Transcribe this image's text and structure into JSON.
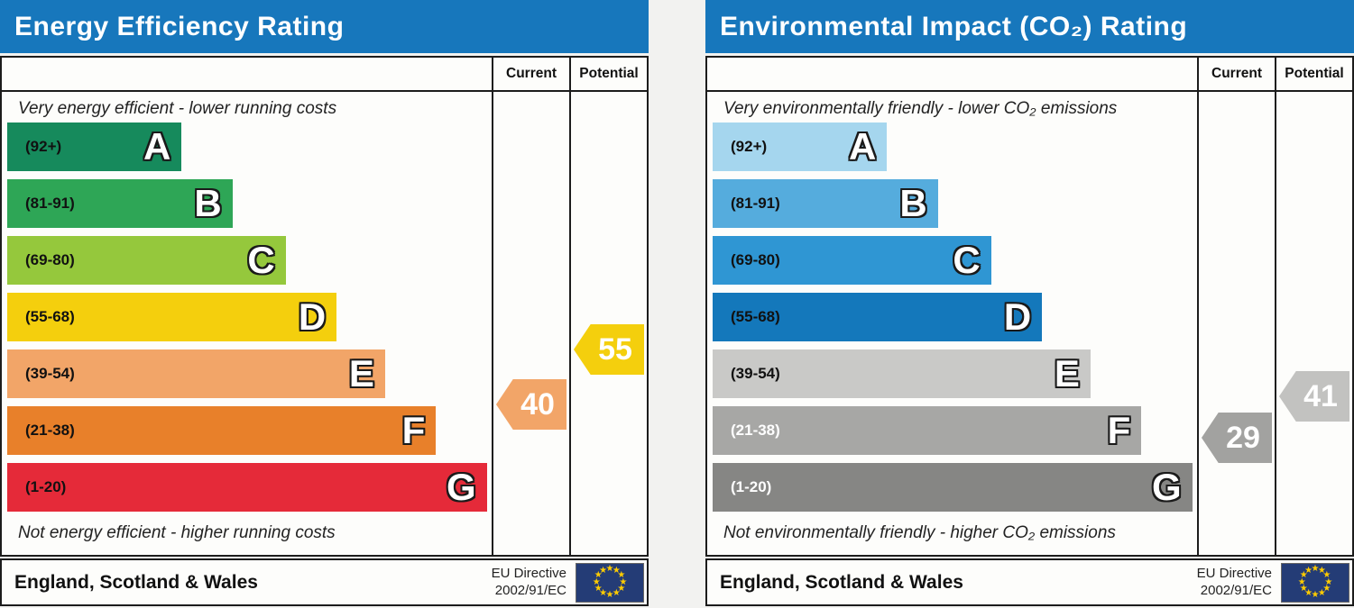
{
  "chart_data": [
    {
      "type": "bar",
      "title": "Energy Efficiency Rating",
      "top_label": "Very energy efficient - lower running costs",
      "bottom_label": "Not energy efficient - higher running costs",
      "categories": [
        "A (92+)",
        "B (81-91)",
        "C (69-80)",
        "D (55-68)",
        "E (39-54)",
        "F (21-38)",
        "G (1-20)"
      ],
      "band_widths_pct": [
        36,
        46.5,
        57.5,
        68,
        78,
        88.5,
        99
      ],
      "band_colors": [
        "#168a5c",
        "#2ea656",
        "#95c83c",
        "#f4cf0d",
        "#f2a568",
        "#e8802a",
        "#e52a39"
      ],
      "current": 40,
      "current_band": "E",
      "potential": 55,
      "potential_band": "D",
      "legend_position": "right columns (Current / Potential)",
      "region": "England, Scotland & Wales",
      "directive": "EU Directive 2002/91/EC"
    },
    {
      "type": "bar",
      "title": "Environmental Impact (CO₂) Rating",
      "top_label": "Very environmentally friendly - lower CO₂ emissions",
      "bottom_label": "Not environmentally friendly - higher CO₂ emissions",
      "categories": [
        "A (92+)",
        "B (81-91)",
        "C (69-80)",
        "D (55-68)",
        "E (39-54)",
        "F (21-38)",
        "G (1-20)"
      ],
      "band_widths_pct": [
        36,
        46.5,
        57.5,
        68,
        78,
        88.5,
        99
      ],
      "band_colors": [
        "#a5d6ee",
        "#55acdd",
        "#2f96d3",
        "#1478bb",
        "#c9c9c7",
        "#a7a7a5",
        "#868684"
      ],
      "current": 29,
      "current_band": "F",
      "potential": 41,
      "potential_band": "E",
      "legend_position": "right columns (Current / Potential)",
      "region": "England, Scotland & Wales",
      "directive": "EU Directive 2002/91/EC"
    }
  ],
  "colors": {
    "header_bg": "#1777bc",
    "flag_bg": "#243c76",
    "flag_star": "#ffcc00"
  },
  "charts": [
    {
      "title": "Energy Efficiency Rating",
      "col_current": "Current",
      "col_potential": "Potential",
      "top_label": "Very energy efficient - lower running costs",
      "bottom_label": "Not energy efficient - higher running costs",
      "bands": [
        {
          "letter": "A",
          "range": "(92+)",
          "color": "#168a5c",
          "width_pct": 36,
          "label_color": "#111111"
        },
        {
          "letter": "B",
          "range": "(81-91)",
          "color": "#2ea656",
          "width_pct": 46.5,
          "label_color": "#111111"
        },
        {
          "letter": "C",
          "range": "(69-80)",
          "color": "#95c83c",
          "width_pct": 57.5,
          "label_color": "#111111"
        },
        {
          "letter": "D",
          "range": "(55-68)",
          "color": "#f4cf0d",
          "width_pct": 68,
          "label_color": "#111111"
        },
        {
          "letter": "E",
          "range": "(39-54)",
          "color": "#f2a568",
          "width_pct": 78,
          "label_color": "#111111"
        },
        {
          "letter": "F",
          "range": "(21-38)",
          "color": "#e8802a",
          "width_pct": 88.5,
          "label_color": "#111111"
        },
        {
          "letter": "G",
          "range": "(1-20)",
          "color": "#e52a39",
          "width_pct": 99,
          "label_color": "#111111"
        }
      ],
      "current": {
        "value": "40",
        "color": "#f2a568"
      },
      "potential": {
        "value": "55",
        "color": "#f4cf0d"
      },
      "footer": {
        "region": "England, Scotland & Wales",
        "directive_line1": "EU Directive",
        "directive_line2": "2002/91/EC"
      }
    },
    {
      "title": "Environmental Impact (CO₂) Rating",
      "col_current": "Current",
      "col_potential": "Potential",
      "top_label": "Very environmentally friendly - lower CO₂ emissions",
      "bottom_label": "Not environmentally friendly - higher CO₂ emissions",
      "bands": [
        {
          "letter": "A",
          "range": "(92+)",
          "color": "#a5d6ee",
          "width_pct": 36,
          "label_color": "#111111"
        },
        {
          "letter": "B",
          "range": "(81-91)",
          "color": "#55acdd",
          "width_pct": 46.5,
          "label_color": "#111111"
        },
        {
          "letter": "C",
          "range": "(69-80)",
          "color": "#2f96d3",
          "width_pct": 57.5,
          "label_color": "#111111"
        },
        {
          "letter": "D",
          "range": "(55-68)",
          "color": "#1478bb",
          "width_pct": 68,
          "label_color": "#111111"
        },
        {
          "letter": "E",
          "range": "(39-54)",
          "color": "#c9c9c7",
          "width_pct": 78,
          "label_color": "#111111"
        },
        {
          "letter": "F",
          "range": "(21-38)",
          "color": "#a7a7a5",
          "width_pct": 88.5,
          "label_color": "#ffffff"
        },
        {
          "letter": "G",
          "range": "(1-20)",
          "color": "#868684",
          "width_pct": 99,
          "label_color": "#ffffff"
        }
      ],
      "current": {
        "value": "29",
        "color": "#a2a2a0"
      },
      "potential": {
        "value": "41",
        "color": "#c2c2c0"
      },
      "footer": {
        "region": "England, Scotland & Wales",
        "directive_line1": "EU Directive",
        "directive_line2": "2002/91/EC"
      }
    }
  ]
}
